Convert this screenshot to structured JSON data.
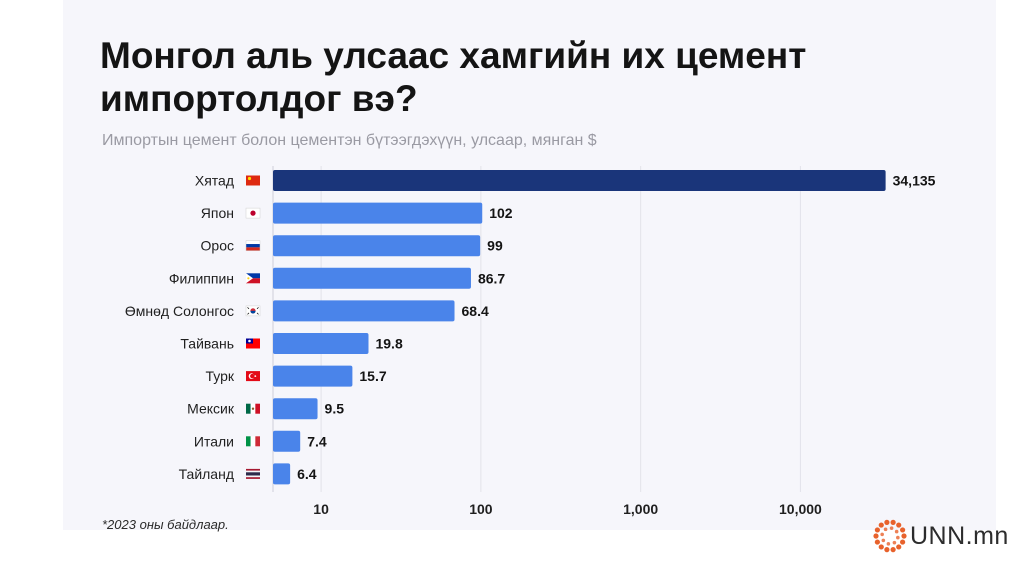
{
  "chart_data": {
    "type": "bar",
    "orientation": "horizontal",
    "title": "Монгол аль улсаас хамгийн их цемент импортолдог вэ?",
    "subtitle": "Импортын цемент болон цементэн бүтээгдэхүүн, улсаар, мянган $",
    "categories": [
      "Хятад",
      "Япон",
      "Орос",
      "Филиппин",
      "Өмнөд Солонгос",
      "Тайвань",
      "Турк",
      "Мексик",
      "Итали",
      "Тайланд"
    ],
    "values": [
      34135,
      102,
      99,
      86.7,
      68.4,
      19.8,
      15.7,
      9.5,
      7.4,
      6.4
    ],
    "value_labels": [
      "34,135",
      "102",
      "99",
      "86.7",
      "68.4",
      "19.8",
      "15.7",
      "9.5",
      "7.4",
      "6.4"
    ],
    "flags": [
      "china-flag-icon",
      "japan-flag-icon",
      "russia-flag-icon",
      "philippines-flag-icon",
      "south-korea-flag-icon",
      "taiwan-flag-icon",
      "turkey-flag-icon",
      "mexico-flag-icon",
      "italy-flag-icon",
      "thailand-flag-icon"
    ],
    "x_scale": "log",
    "x_ticks": [
      10,
      100,
      1000,
      10000
    ],
    "x_tick_labels": [
      "10",
      "100",
      "1,000",
      "10,000"
    ],
    "xlim": [
      5,
      42000
    ],
    "grid": true,
    "colors": {
      "top_bar": "#1a357a",
      "bars": "#4a84ea"
    }
  },
  "footnote": "*2023 оны байдлаар.",
  "logo": {
    "text": "UNN.mn",
    "icon": "unn-sun-logo-icon",
    "color": "#e8622c"
  }
}
